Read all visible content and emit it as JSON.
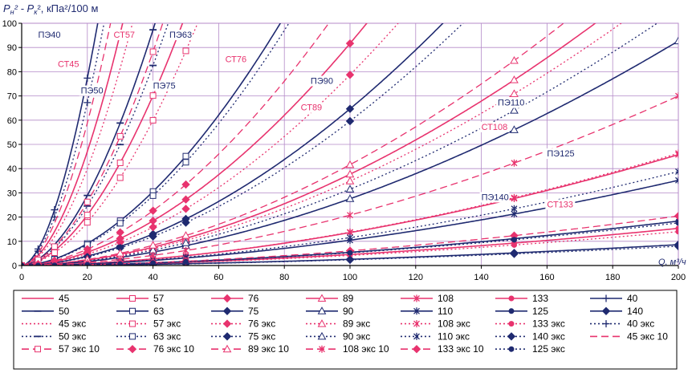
{
  "chart_data": {
    "type": "line",
    "title": "",
    "ylabel": "Pн² - Pк², кПа²/100 м",
    "ylabel_parts": {
      "p1": "P",
      "s1": "н",
      "mid": "² - ",
      "p2": "P",
      "s2": "к",
      "rest": "², кПа²/100 м"
    },
    "xlabel": "Q, м³/ч",
    "xlim": [
      0,
      200
    ],
    "ylim": [
      0,
      100
    ],
    "xticks": [
      "0",
      "20",
      "40",
      "60",
      "80",
      "100",
      "120",
      "140",
      "160",
      "180",
      "200"
    ],
    "yticks": [
      "0",
      "10",
      "20",
      "30",
      "40",
      "50",
      "60",
      "70",
      "80",
      "90",
      "100"
    ],
    "x_points": [
      0,
      5,
      10,
      20,
      30,
      40,
      50,
      100,
      150,
      200
    ],
    "colors": {
      "steel": "#e8336e",
      "pe": "#1f2a70",
      "grid": "#b48ac8",
      "axis": "#000000"
    },
    "series": [
      {
        "name": "45",
        "color": "#e8336e",
        "dash": "solid",
        "marker": "none",
        "k": 14.0
      },
      {
        "name": "57",
        "color": "#e8336e",
        "dash": "solid",
        "marker": "square",
        "k": 6.2
      },
      {
        "name": "76",
        "color": "#e8336e",
        "dash": "solid",
        "marker": "diamond",
        "k": 1.63
      },
      {
        "name": "89",
        "color": "#e8336e",
        "dash": "solid",
        "marker": "triangle",
        "k": 0.67
      },
      {
        "name": "108",
        "color": "#e8336e",
        "dash": "solid",
        "marker": "star",
        "k": 0.242
      },
      {
        "name": "133",
        "color": "#e8336e",
        "dash": "solid",
        "marker": "circle",
        "k": 0.081
      },
      {
        "name": "40",
        "color": "#1f2a70",
        "dash": "solid",
        "marker": "plus",
        "k": 23.0
      },
      {
        "name": "50",
        "color": "#1f2a70",
        "dash": "solid",
        "marker": "dash",
        "k": 8.6
      },
      {
        "name": "63",
        "color": "#1f2a70",
        "dash": "solid",
        "marker": "square",
        "k": 2.7
      },
      {
        "name": "75",
        "color": "#1f2a70",
        "dash": "solid",
        "marker": "diamond",
        "k": 1.15
      },
      {
        "name": "90",
        "color": "#1f2a70",
        "dash": "solid",
        "marker": "triangle",
        "k": 0.49
      },
      {
        "name": "110",
        "color": "#1f2a70",
        "dash": "solid",
        "marker": "star",
        "k": 0.186
      },
      {
        "name": "125",
        "color": "#1f2a70",
        "dash": "solid",
        "marker": "circle",
        "k": 0.097
      },
      {
        "name": "140",
        "color": "#1f2a70",
        "dash": "solid",
        "marker": "diamond",
        "k": 0.0455
      },
      {
        "name": "45 экс",
        "color": "#e8336e",
        "dash": "dotted",
        "marker": "none",
        "k": 11.9
      },
      {
        "name": "57 экс",
        "color": "#e8336e",
        "dash": "dotted",
        "marker": "square",
        "k": 5.3
      },
      {
        "name": "76 экс",
        "color": "#e8336e",
        "dash": "dotted",
        "marker": "diamond",
        "k": 1.4
      },
      {
        "name": "89 экс",
        "color": "#e8336e",
        "dash": "dotted",
        "marker": "triangle",
        "k": 0.62
      },
      {
        "name": "108 экс",
        "color": "#e8336e",
        "dash": "dotted",
        "marker": "star",
        "k": 0.245
      },
      {
        "name": "133 экс",
        "color": "#e8336e",
        "dash": "dotted",
        "marker": "circle",
        "k": 0.074
      },
      {
        "name": "40 экс",
        "color": "#1f2a70",
        "dash": "dotted",
        "marker": "plus",
        "k": 20.0
      },
      {
        "name": "50 экс",
        "color": "#1f2a70",
        "dash": "dotted",
        "marker": "dash",
        "k": 7.3
      },
      {
        "name": "63 экс",
        "color": "#1f2a70",
        "dash": "dotted",
        "marker": "square",
        "k": 2.55
      },
      {
        "name": "75 экс",
        "color": "#1f2a70",
        "dash": "dotted",
        "marker": "diamond",
        "k": 1.06
      },
      {
        "name": "90 экс",
        "color": "#1f2a70",
        "dash": "dotted",
        "marker": "triangle",
        "k": 0.56
      },
      {
        "name": "110 экс",
        "color": "#1f2a70",
        "dash": "dotted",
        "marker": "star",
        "k": 0.205
      },
      {
        "name": "140 экс",
        "color": "#1f2a70",
        "dash": "dotted",
        "marker": "diamond",
        "k": 0.042
      },
      {
        "name": "45 экс 10",
        "color": "#e8336e",
        "dash": "dashed",
        "marker": "none",
        "k": 17.5
      },
      {
        "name": "57 экс 10",
        "color": "#e8336e",
        "dash": "dashed",
        "marker": "square",
        "k": 7.8
      },
      {
        "name": "76 экс 10",
        "color": "#e8336e",
        "dash": "dashed",
        "marker": "diamond",
        "k": 2.0
      },
      {
        "name": "89 экс 10",
        "color": "#e8336e",
        "dash": "dashed",
        "marker": "triangle",
        "k": 0.74
      },
      {
        "name": "108 экс 10",
        "color": "#e8336e",
        "dash": "dashed",
        "marker": "star",
        "k": 0.37
      },
      {
        "name": "133 экс 10",
        "color": "#e8336e",
        "dash": "dashed",
        "marker": "diamond",
        "k": 0.108
      },
      {
        "name": "125 экс",
        "color": "#1f2a70",
        "dash": "dotted",
        "marker": "circle",
        "k": 0.093
      }
    ],
    "curve_labels": [
      {
        "text": "ПЭ40",
        "color": "#1f2a70",
        "x": 5,
        "y": 94
      },
      {
        "text": "СТ57",
        "color": "#e8336e",
        "x": 28,
        "y": 94
      },
      {
        "text": "ПЭ63",
        "color": "#1f2a70",
        "x": 45,
        "y": 94
      },
      {
        "text": "СТ45",
        "color": "#e8336e",
        "x": 11,
        "y": 82
      },
      {
        "text": "СТ76",
        "color": "#e8336e",
        "x": 62,
        "y": 84
      },
      {
        "text": "ПЭ90",
        "color": "#1f2a70",
        "x": 88,
        "y": 75
      },
      {
        "text": "ПЭ50",
        "color": "#1f2a70",
        "x": 18,
        "y": 71
      },
      {
        "text": "ПЭ75",
        "color": "#1f2a70",
        "x": 40,
        "y": 73
      },
      {
        "text": "СТ89",
        "color": "#e8336e",
        "x": 85,
        "y": 64
      },
      {
        "text": "ПЭ110",
        "color": "#1f2a70",
        "x": 145,
        "y": 66
      },
      {
        "text": "СТ108",
        "color": "#e8336e",
        "x": 140,
        "y": 56
      },
      {
        "text": "ПЭ125",
        "color": "#1f2a70",
        "x": 160,
        "y": 45
      },
      {
        "text": "ПЭ140",
        "color": "#1f2a70",
        "x": 140,
        "y": 27
      },
      {
        "text": "СТ133",
        "color": "#e8336e",
        "x": 160,
        "y": 24
      }
    ]
  }
}
